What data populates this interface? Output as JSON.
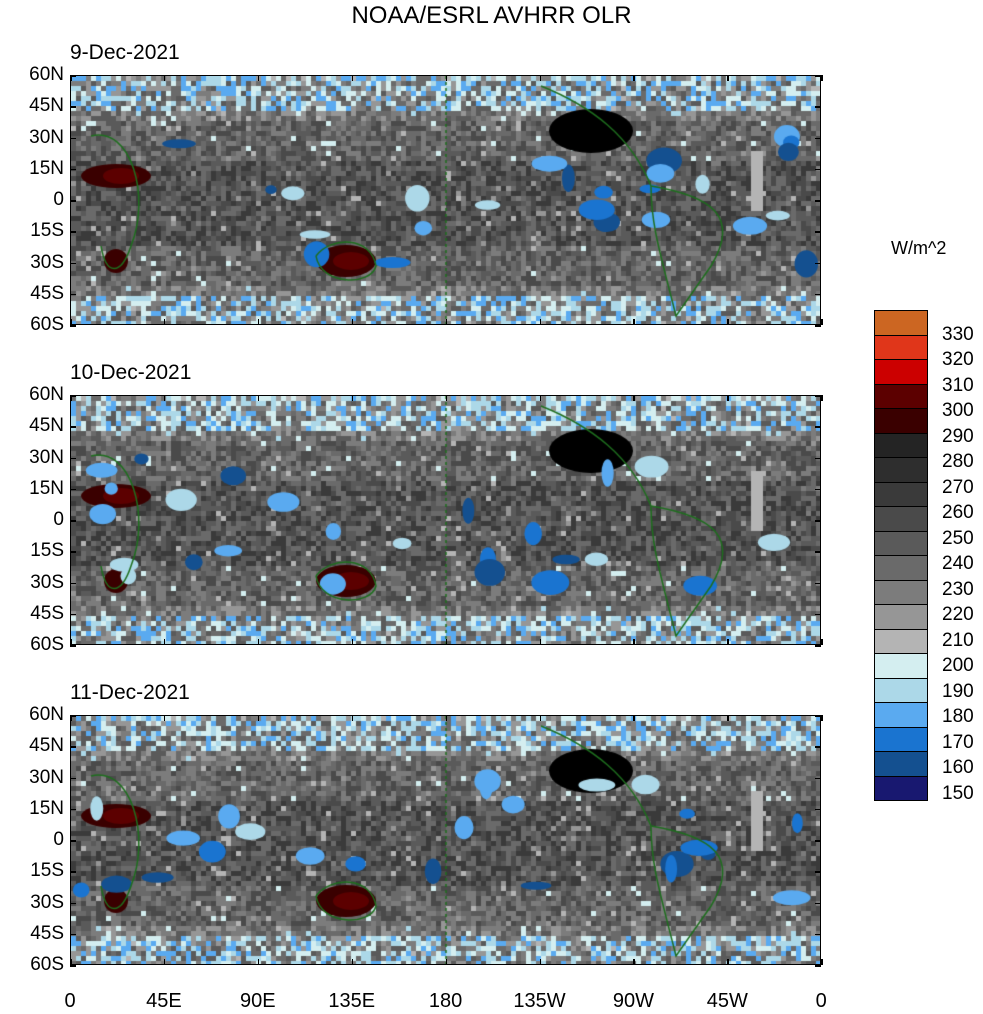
{
  "title": "NOAA/ESRL AVHRR OLR",
  "panels": [
    {
      "date": "9-Dec-2021"
    },
    {
      "date": "10-Dec-2021"
    },
    {
      "date": "11-Dec-2021"
    }
  ],
  "lat_ticks": [
    "60N",
    "45N",
    "30N",
    "15N",
    "0",
    "15S",
    "30S",
    "45S",
    "60S"
  ],
  "lon_ticks": [
    "0",
    "45E",
    "90E",
    "135E",
    "180",
    "135W",
    "90W",
    "45W",
    "0"
  ],
  "colorbar": {
    "units": "W/m^2",
    "labels": [
      "330",
      "320",
      "310",
      "300",
      "290",
      "280",
      "270",
      "260",
      "250",
      "240",
      "230",
      "220",
      "210",
      "200",
      "190",
      "180",
      "170",
      "160",
      "150"
    ],
    "colors": [
      "#cc6622",
      "#e0361a",
      "#cc0000",
      "#5c0000",
      "#3a0000",
      "#242424",
      "#2e2e2e",
      "#3a3a3a",
      "#4a4a4a",
      "#5a5a5a",
      "#6a6a6a",
      "#7c7c7c",
      "#969696",
      "#b4b4b4",
      "#d4eef0",
      "#acd8e8",
      "#5aaaf0",
      "#1a74d0",
      "#145090",
      "#181870"
    ]
  },
  "coastline_color": "#1e6e1e"
}
